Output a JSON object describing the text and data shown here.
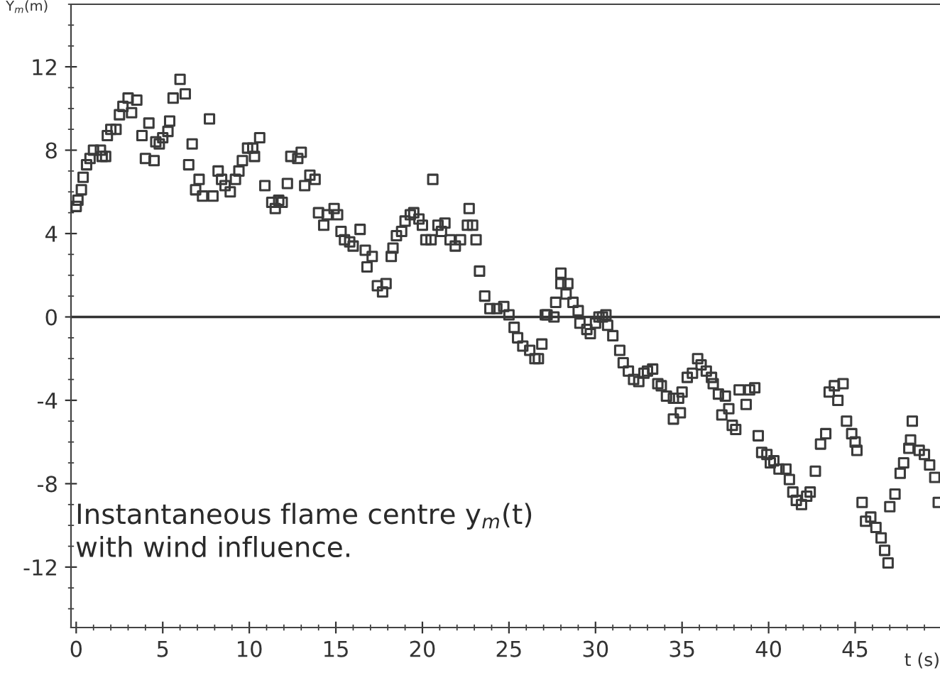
{
  "chart_data": [
    {
      "type": "scatter",
      "xlabel": "t (s)",
      "ylabel": "Y$_{m}$(m)",
      "annotations": [
        "Instantaneous flame centre y$_{m}$(t)\nwith wind influence."
      ],
      "xlim": [
        -0.3,
        49.9
      ],
      "ylim": [
        -14.9,
        15.0
      ],
      "xticks": [
        0,
        5,
        10,
        15,
        20,
        25,
        30,
        35,
        40,
        45
      ],
      "yticks": [
        -12,
        -8,
        -4,
        0,
        4,
        8,
        12
      ],
      "marker": "square",
      "grid": false,
      "legend": false,
      "ref_lines": [
        {
          "axis": "y",
          "value": 0,
          "color": "#333333"
        }
      ],
      "series": [
        {
          "color": "#3a3a3a",
          "x": [
            0,
            0.1,
            0.3,
            0.4,
            0.6,
            0.8,
            1.0,
            1.4,
            1.5,
            1.7,
            1.8,
            2.0,
            2.3,
            2.5,
            2.7,
            3.0,
            3.2,
            3.5,
            3.8,
            4.0,
            4.2,
            4.5,
            4.6,
            4.8,
            5.0,
            5.3,
            5.4,
            5.6,
            6.0,
            6.3,
            6.5,
            6.7,
            6.9,
            7.1,
            7.3,
            7.7,
            7.9,
            8.2,
            8.4,
            8.6,
            8.9,
            9.2,
            9.4,
            9.6,
            9.9,
            10.2,
            10.3,
            10.6,
            10.9,
            11.3,
            11.5,
            11.7,
            11.9,
            12.2,
            12.4,
            12.8,
            13.0,
            13.2,
            13.5,
            13.8,
            14.0,
            14.3,
            14.5,
            14.9,
            15.1,
            15.3,
            15.5,
            15.8,
            16.0,
            16.4,
            16.7,
            16.8,
            17.1,
            17.4,
            17.7,
            17.9,
            18.2,
            18.3,
            18.5,
            18.8,
            19.0,
            19.3,
            19.5,
            19.8,
            20.0,
            20.2,
            20.5,
            20.6,
            20.9,
            21.1,
            21.3,
            21.6,
            21.9,
            22.2,
            22.6,
            22.7,
            22.9,
            23.1,
            23.3,
            23.6,
            23.9,
            24.3,
            24.7,
            25.0,
            25.3,
            25.5,
            25.8,
            26.2,
            26.5,
            26.7,
            26.9,
            27.1,
            27.2,
            27.6,
            27.7,
            28.0,
            28.0,
            28.3,
            28.4,
            28.7,
            29.0,
            29.1,
            29.5,
            29.7,
            30.0,
            30.2,
            30.4,
            30.6,
            30.7,
            31.0,
            31.4,
            31.6,
            31.9,
            32.2,
            32.5,
            32.8,
            33.0,
            33.3,
            33.6,
            33.8,
            34.1,
            34.5,
            34.5,
            34.8,
            34.9,
            35.0,
            35.3,
            35.6,
            35.9,
            36.1,
            36.4,
            36.7,
            36.8,
            37.1,
            37.3,
            37.5,
            37.7,
            37.9,
            38.1,
            38.3,
            38.7,
            38.9,
            39.2,
            39.4,
            39.6,
            39.9,
            40.1,
            40.3,
            40.6,
            41.0,
            41.2,
            41.4,
            41.6,
            41.9,
            42.2,
            42.4,
            42.7,
            43.0,
            43.3,
            43.5,
            43.8,
            44.0,
            44.3,
            44.5,
            44.8,
            45.0,
            45.1,
            45.4,
            45.6,
            45.9,
            46.2,
            46.5,
            46.7,
            46.9,
            47.0,
            47.3,
            47.6,
            47.8,
            48.1,
            48.2,
            48.3,
            48.7,
            49.0,
            49.3,
            49.6,
            49.8
          ],
          "values": [
            5.3,
            5.6,
            6.1,
            6.7,
            7.3,
            7.6,
            8.0,
            8.0,
            7.7,
            7.7,
            8.7,
            9.0,
            9.0,
            9.7,
            10.1,
            10.5,
            9.8,
            10.4,
            8.7,
            7.6,
            9.3,
            7.5,
            8.4,
            8.3,
            8.6,
            8.9,
            9.4,
            10.5,
            11.4,
            10.7,
            7.3,
            8.3,
            6.1,
            6.6,
            5.8,
            9.5,
            5.8,
            7.0,
            6.6,
            6.3,
            6.0,
            6.6,
            7.0,
            7.5,
            8.1,
            8.1,
            7.7,
            8.6,
            6.3,
            5.5,
            5.2,
            5.6,
            5.5,
            6.4,
            7.7,
            7.6,
            7.9,
            6.3,
            6.8,
            6.6,
            5.0,
            4.4,
            4.9,
            5.2,
            4.9,
            4.1,
            3.7,
            3.6,
            3.4,
            4.2,
            3.2,
            2.4,
            2.9,
            1.5,
            1.2,
            1.6,
            2.9,
            3.3,
            3.9,
            4.1,
            4.6,
            4.9,
            5.0,
            4.7,
            4.4,
            3.7,
            3.7,
            6.6,
            4.4,
            4.1,
            4.5,
            3.7,
            3.4,
            3.7,
            4.4,
            5.2,
            4.4,
            3.7,
            2.2,
            1.0,
            0.4,
            0.4,
            0.5,
            0.1,
            -0.5,
            -1.0,
            -1.4,
            -1.6,
            -2.0,
            -2.0,
            -1.3,
            0.1,
            0.1,
            0.0,
            0.7,
            1.6,
            2.1,
            1.1,
            1.6,
            0.7,
            0.3,
            -0.3,
            -0.6,
            -0.8,
            -0.3,
            0.0,
            0.0,
            0.1,
            -0.4,
            -0.9,
            -1.6,
            -2.2,
            -2.6,
            -3.0,
            -3.1,
            -2.7,
            -2.6,
            -2.5,
            -3.2,
            -3.3,
            -3.8,
            -3.9,
            -4.9,
            -3.9,
            -4.6,
            -3.6,
            -2.9,
            -2.7,
            -2.0,
            -2.3,
            -2.6,
            -2.9,
            -3.2,
            -3.7,
            -4.7,
            -3.8,
            -4.4,
            -5.2,
            -5.4,
            -3.5,
            -4.2,
            -3.5,
            -3.4,
            -5.7,
            -6.5,
            -6.6,
            -7.0,
            -6.9,
            -7.3,
            -7.3,
            -7.8,
            -8.4,
            -8.8,
            -9.0,
            -8.6,
            -8.4,
            -7.4,
            -6.1,
            -5.6,
            -3.6,
            -3.3,
            -4.0,
            -3.2,
            -5.0,
            -5.6,
            -6.0,
            -6.4,
            -8.9,
            -9.8,
            -9.6,
            -10.1,
            -10.6,
            -11.2,
            -11.8,
            -9.1,
            -8.5,
            -7.5,
            -7.0,
            -6.3,
            -5.9,
            -5.0,
            -6.4,
            -6.6,
            -7.1,
            -7.7,
            -8.9
          ]
        }
      ]
    }
  ]
}
